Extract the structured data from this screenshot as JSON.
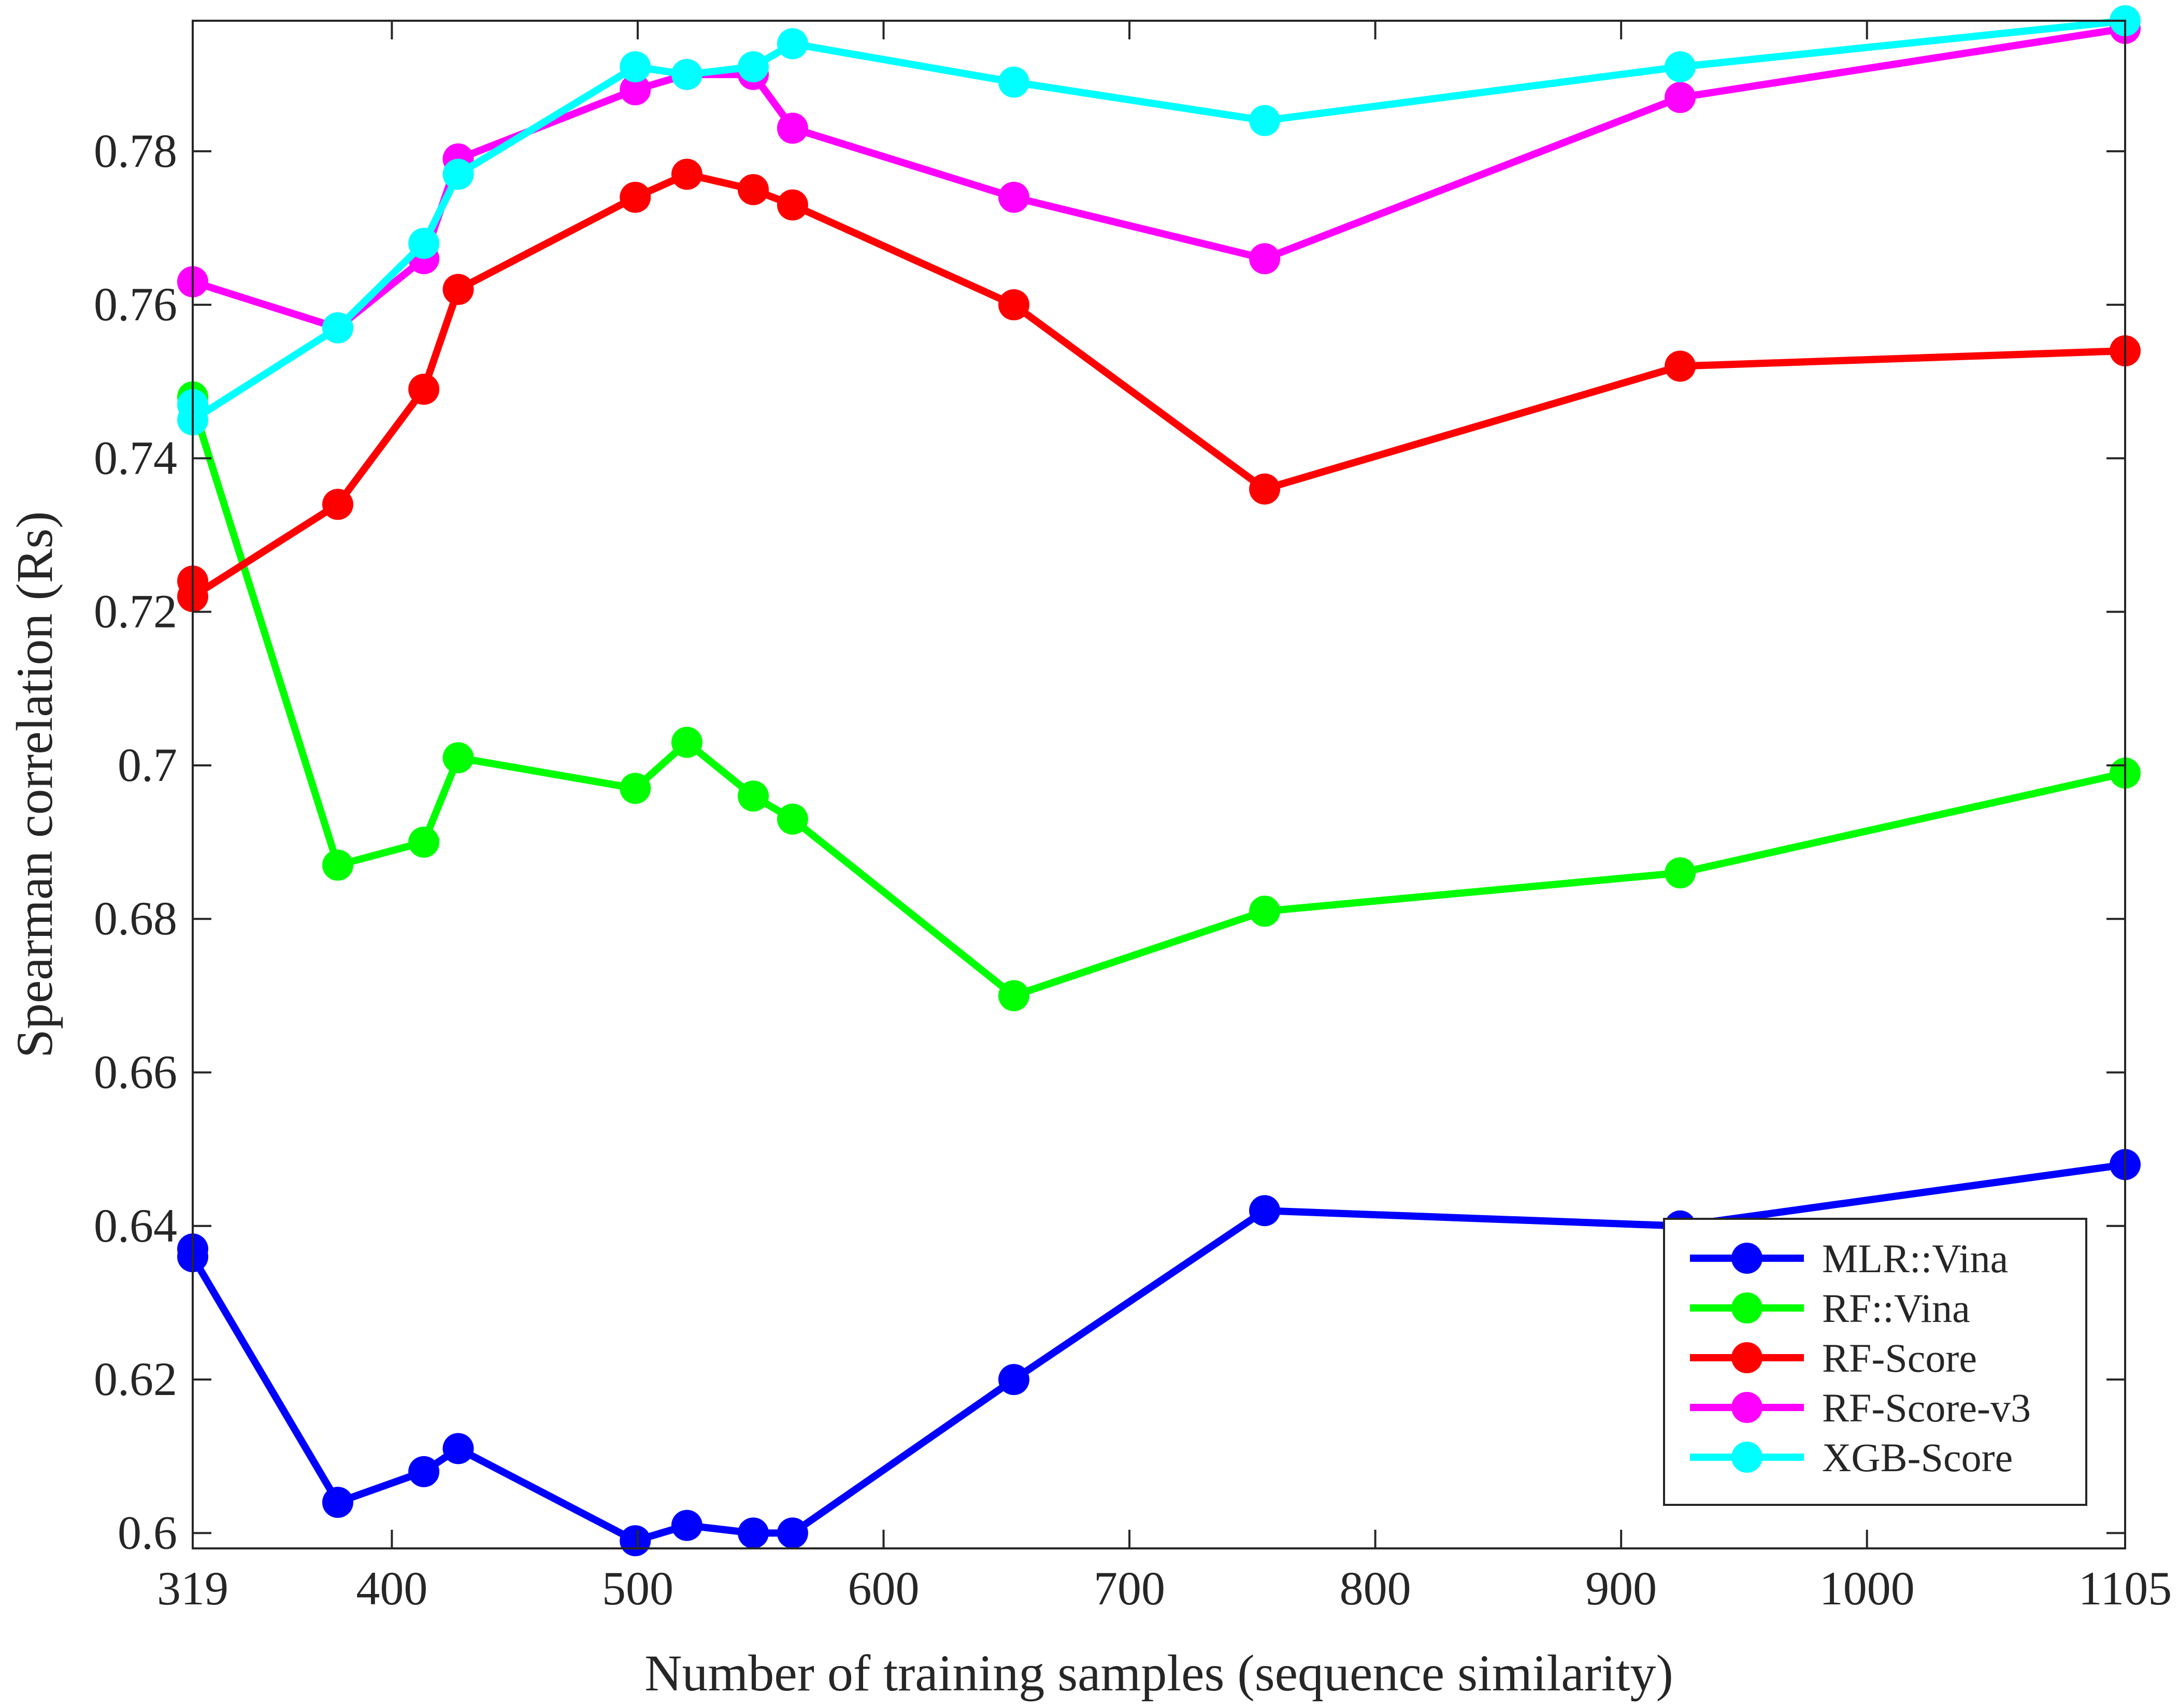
{
  "chart_data": {
    "type": "line",
    "title": "",
    "xlabel": "Number of training samples (sequence similarity)",
    "ylabel": "Spearman correlation (Rs)",
    "xlim": [
      319,
      1105
    ],
    "ylim": [
      0.598,
      0.797
    ],
    "xticks": [
      319,
      400,
      500,
      600,
      700,
      800,
      900,
      1000,
      1105
    ],
    "yticks": [
      0.6,
      0.62,
      0.64,
      0.66,
      0.68,
      0.7,
      0.72,
      0.74,
      0.76,
      0.78
    ],
    "ytick_labels": [
      "0.6",
      "0.62",
      "0.64",
      "0.66",
      "0.68",
      "0.7",
      "0.72",
      "0.74",
      "0.76",
      "0.78"
    ],
    "grid": false,
    "legend_position": "bottom-right",
    "x": [
      319,
      319,
      378,
      413,
      427,
      499,
      520,
      547,
      563,
      653,
      755,
      924,
      1105
    ],
    "series": [
      {
        "name": "MLR::Vina",
        "color": "#0000ff",
        "values": [
          0.637,
          0.636,
          0.604,
          0.608,
          0.611,
          0.599,
          0.601,
          0.6,
          0.6,
          0.62,
          0.642,
          0.64,
          0.648
        ]
      },
      {
        "name": "RF::Vina",
        "color": "#00ff00",
        "values": [
          0.748,
          0.747,
          0.687,
          0.69,
          0.701,
          0.697,
          0.703,
          0.696,
          0.693,
          0.67,
          0.681,
          0.686,
          0.699
        ]
      },
      {
        "name": "RF-Score",
        "color": "#ff0000",
        "values": [
          0.724,
          0.722,
          0.734,
          0.749,
          0.762,
          0.774,
          0.777,
          0.775,
          0.773,
          0.76,
          0.736,
          0.752,
          0.754
        ]
      },
      {
        "name": "RF-Score-v3",
        "color": "#ff00ff",
        "values": [
          0.763,
          0.763,
          0.757,
          0.766,
          0.779,
          0.788,
          0.79,
          0.79,
          0.783,
          0.774,
          0.766,
          0.787,
          0.796
        ]
      },
      {
        "name": "XGB-Score",
        "color": "#00ffff",
        "values": [
          0.747,
          0.745,
          0.757,
          0.768,
          0.777,
          0.791,
          0.79,
          0.791,
          0.794,
          0.789,
          0.784,
          0.791,
          0.797
        ]
      }
    ]
  }
}
